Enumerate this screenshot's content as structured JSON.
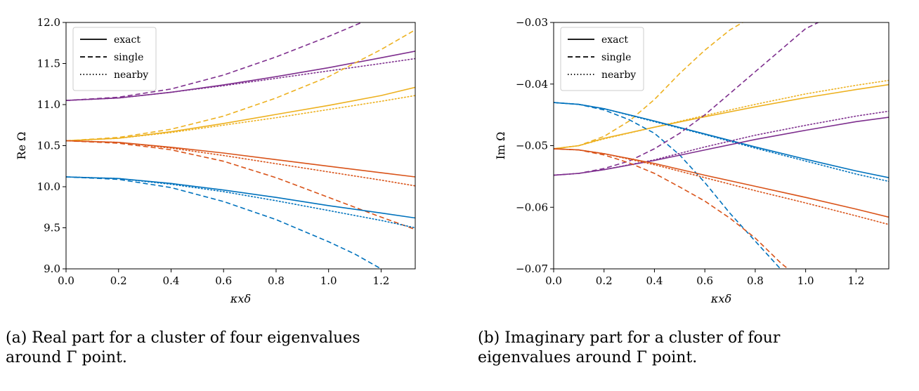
{
  "legend": {
    "exact": "exact",
    "single": "single",
    "nearby": "nearby"
  },
  "captions": {
    "a": "(a) Real part for a cluster of four eigenvalues around Γ point.",
    "b": "(b) Imaginary part for a cluster of four eigenvalues around Γ point."
  },
  "colors": {
    "purple": "#7e2f8e",
    "yellow": "#edb120",
    "orange": "#d95319",
    "blue": "#0072bd"
  },
  "chart_data": [
    {
      "type": "line",
      "xlabel": "κxδ",
      "ylabel": "Re Ω",
      "xlim": [
        0,
        1.33
      ],
      "ylim": [
        9.0,
        12.0
      ],
      "xticks": [
        "0.0",
        "0.2",
        "0.4",
        "0.6",
        "0.8",
        "1.0",
        "1.2"
      ],
      "yticks": [
        "9.0",
        "9.5",
        "10.0",
        "10.5",
        "11.0",
        "11.5",
        "12.0"
      ],
      "legend_position": "top-left",
      "grid": false,
      "series": [
        {
          "color": "purple",
          "style": "exact",
          "x": [
            0,
            0.2,
            0.4,
            0.6,
            0.8,
            1.0,
            1.2,
            1.33
          ],
          "y": [
            11.05,
            11.08,
            11.15,
            11.24,
            11.34,
            11.45,
            11.57,
            11.65
          ]
        },
        {
          "color": "purple",
          "style": "single",
          "x": [
            0,
            0.2,
            0.4,
            0.6,
            0.8,
            1.0,
            1.2,
            1.33
          ],
          "y": [
            11.05,
            11.09,
            11.19,
            11.36,
            11.58,
            11.83,
            12.1,
            12.3
          ]
        },
        {
          "color": "purple",
          "style": "nearby",
          "x": [
            0,
            0.2,
            0.4,
            0.6,
            0.8,
            1.0,
            1.2,
            1.33
          ],
          "y": [
            11.05,
            11.08,
            11.15,
            11.23,
            11.32,
            11.41,
            11.5,
            11.56
          ]
        },
        {
          "color": "yellow",
          "style": "exact",
          "x": [
            0,
            0.2,
            0.4,
            0.6,
            0.8,
            1.0,
            1.2,
            1.33
          ],
          "y": [
            10.56,
            10.59,
            10.67,
            10.77,
            10.88,
            10.99,
            11.11,
            11.21
          ]
        },
        {
          "color": "yellow",
          "style": "single",
          "x": [
            0,
            0.2,
            0.4,
            0.6,
            0.8,
            1.0,
            1.2,
            1.33
          ],
          "y": [
            10.56,
            10.6,
            10.7,
            10.86,
            11.08,
            11.34,
            11.67,
            11.91
          ]
        },
        {
          "color": "yellow",
          "style": "nearby",
          "x": [
            0,
            0.2,
            0.4,
            0.6,
            0.8,
            1.0,
            1.2,
            1.33
          ],
          "y": [
            10.56,
            10.59,
            10.66,
            10.75,
            10.84,
            10.94,
            11.04,
            11.11
          ]
        },
        {
          "color": "orange",
          "style": "exact",
          "x": [
            0,
            0.2,
            0.4,
            0.6,
            0.8,
            1.0,
            1.2,
            1.33
          ],
          "y": [
            10.56,
            10.54,
            10.48,
            10.41,
            10.33,
            10.25,
            10.17,
            10.12
          ]
        },
        {
          "color": "orange",
          "style": "single",
          "x": [
            0,
            0.2,
            0.4,
            0.6,
            0.8,
            1.0,
            1.2,
            1.33
          ],
          "y": [
            10.56,
            10.53,
            10.45,
            10.31,
            10.11,
            9.87,
            9.63,
            9.48
          ]
        },
        {
          "color": "orange",
          "style": "nearby",
          "x": [
            0,
            0.2,
            0.4,
            0.6,
            0.8,
            1.0,
            1.2,
            1.33
          ],
          "y": [
            10.56,
            10.54,
            10.47,
            10.38,
            10.28,
            10.18,
            10.08,
            10.01
          ]
        },
        {
          "color": "blue",
          "style": "exact",
          "x": [
            0,
            0.2,
            0.4,
            0.6,
            0.8,
            1.0,
            1.2,
            1.33
          ],
          "y": [
            10.12,
            10.1,
            10.04,
            9.96,
            9.87,
            9.77,
            9.68,
            9.62
          ]
        },
        {
          "color": "blue",
          "style": "single",
          "x": [
            0,
            0.2,
            0.4,
            0.6,
            0.8,
            1.0,
            1.1,
            1.2
          ],
          "y": [
            10.12,
            10.09,
            9.99,
            9.82,
            9.6,
            9.33,
            9.18,
            9.0
          ]
        },
        {
          "color": "blue",
          "style": "nearby",
          "x": [
            0,
            0.2,
            0.4,
            0.6,
            0.8,
            1.0,
            1.2,
            1.33
          ],
          "y": [
            10.12,
            10.1,
            10.03,
            9.94,
            9.83,
            9.71,
            9.59,
            9.5
          ]
        }
      ]
    },
    {
      "type": "line",
      "xlabel": "κxδ",
      "ylabel": "Im Ω",
      "xlim": [
        0,
        1.33
      ],
      "ylim": [
        -0.07,
        -0.03
      ],
      "xticks": [
        "0.0",
        "0.2",
        "0.4",
        "0.6",
        "0.8",
        "1.0",
        "1.2"
      ],
      "yticks": [
        "−0.07",
        "−0.06",
        "−0.05",
        "−0.04",
        "−0.03"
      ],
      "legend_position": "top-left",
      "grid": false,
      "series": [
        {
          "color": "yellow",
          "style": "exact",
          "x": [
            0,
            0.1,
            0.2,
            0.4,
            0.6,
            0.8,
            1.0,
            1.2,
            1.33
          ],
          "y": [
            -0.0505,
            -0.05,
            -0.0488,
            -0.047,
            -0.0453,
            -0.0437,
            -0.0422,
            -0.0409,
            -0.0401
          ]
        },
        {
          "color": "yellow",
          "style": "single",
          "x": [
            0,
            0.1,
            0.2,
            0.3,
            0.4,
            0.5,
            0.6,
            0.7,
            0.75
          ],
          "y": [
            -0.0505,
            -0.05,
            -0.0485,
            -0.046,
            -0.0425,
            -0.0383,
            -0.0345,
            -0.0312,
            -0.03
          ]
        },
        {
          "color": "yellow",
          "style": "nearby",
          "x": [
            0,
            0.1,
            0.2,
            0.4,
            0.6,
            0.8,
            1.0,
            1.2,
            1.33
          ],
          "y": [
            -0.0505,
            -0.05,
            -0.0489,
            -0.047,
            -0.0451,
            -0.0433,
            -0.0416,
            -0.0402,
            -0.0394
          ]
        },
        {
          "color": "blue",
          "style": "exact",
          "x": [
            0,
            0.1,
            0.2,
            0.4,
            0.6,
            0.8,
            1.0,
            1.2,
            1.33
          ],
          "y": [
            -0.043,
            -0.0433,
            -0.044,
            -0.046,
            -0.0481,
            -0.0502,
            -0.0522,
            -0.0541,
            -0.0552
          ]
        },
        {
          "color": "blue",
          "style": "single",
          "x": [
            0,
            0.1,
            0.2,
            0.3,
            0.4,
            0.5,
            0.6,
            0.7,
            0.8,
            0.9
          ],
          "y": [
            -0.043,
            -0.0433,
            -0.0442,
            -0.0458,
            -0.048,
            -0.0515,
            -0.056,
            -0.061,
            -0.0655,
            -0.07
          ]
        },
        {
          "color": "blue",
          "style": "nearby",
          "x": [
            0,
            0.1,
            0.2,
            0.4,
            0.6,
            0.8,
            1.0,
            1.2,
            1.33
          ],
          "y": [
            -0.043,
            -0.0433,
            -0.044,
            -0.0461,
            -0.0482,
            -0.0504,
            -0.0525,
            -0.0546,
            -0.0558
          ]
        },
        {
          "color": "purple",
          "style": "exact",
          "x": [
            0,
            0.1,
            0.2,
            0.4,
            0.6,
            0.8,
            1.0,
            1.2,
            1.33
          ],
          "y": [
            -0.0548,
            -0.0545,
            -0.0539,
            -0.0524,
            -0.0507,
            -0.049,
            -0.0475,
            -0.0461,
            -0.0454
          ]
        },
        {
          "color": "purple",
          "style": "single",
          "x": [
            0,
            0.1,
            0.2,
            0.3,
            0.4,
            0.5,
            0.6,
            0.7,
            0.8,
            0.9,
            1.0,
            1.05
          ],
          "y": [
            -0.0548,
            -0.0545,
            -0.0537,
            -0.0525,
            -0.0505,
            -0.048,
            -0.045,
            -0.0415,
            -0.038,
            -0.0345,
            -0.031,
            -0.03
          ]
        },
        {
          "color": "purple",
          "style": "nearby",
          "x": [
            0,
            0.1,
            0.2,
            0.4,
            0.6,
            0.8,
            1.0,
            1.2,
            1.33
          ],
          "y": [
            -0.0548,
            -0.0545,
            -0.0539,
            -0.0523,
            -0.0502,
            -0.0483,
            -0.0467,
            -0.0452,
            -0.0444
          ]
        },
        {
          "color": "orange",
          "style": "exact",
          "x": [
            0,
            0.1,
            0.2,
            0.4,
            0.6,
            0.8,
            1.0,
            1.2,
            1.33
          ],
          "y": [
            -0.0505,
            -0.0507,
            -0.0513,
            -0.0529,
            -0.0548,
            -0.0566,
            -0.0584,
            -0.0603,
            -0.0616
          ]
        },
        {
          "color": "orange",
          "style": "single",
          "x": [
            0,
            0.1,
            0.2,
            0.3,
            0.4,
            0.5,
            0.6,
            0.7,
            0.8,
            0.9,
            0.93
          ],
          "y": [
            -0.0505,
            -0.0507,
            -0.0515,
            -0.0528,
            -0.0545,
            -0.0567,
            -0.059,
            -0.0618,
            -0.065,
            -0.069,
            -0.07
          ]
        },
        {
          "color": "orange",
          "style": "nearby",
          "x": [
            0,
            0.1,
            0.2,
            0.4,
            0.6,
            0.8,
            1.0,
            1.2,
            1.33
          ],
          "y": [
            -0.0505,
            -0.0507,
            -0.0513,
            -0.0531,
            -0.0552,
            -0.0573,
            -0.0593,
            -0.0614,
            -0.0628
          ]
        }
      ]
    }
  ]
}
